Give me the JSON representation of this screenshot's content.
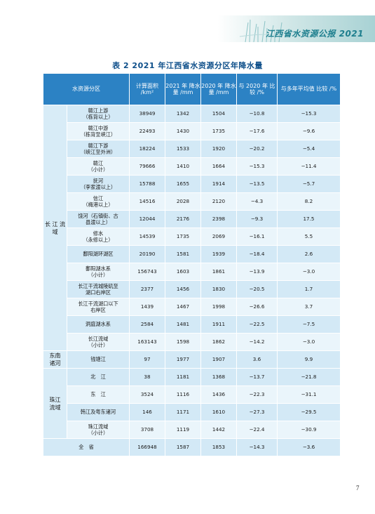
{
  "header": {
    "report_title": "江西省水资源公报 2021"
  },
  "caption": "表 2   2021 年江西省水资源分区年降水量",
  "table": {
    "columns": {
      "zone": "水资源分区",
      "area": "计算面积 /km²",
      "p2021": "2021 年 降水量 /mm",
      "p2020": "2020 年 降水量 /mm",
      "vs2020": "与 2020 年 比较 /%",
      "vsavg": "与多年平均值 比较 /%"
    },
    "groups": [
      {
        "name": "长 江 流 域",
        "rows": [
          {
            "name": "赣江上游\n（栋背以上）",
            "area": "38949",
            "p2021": "1342",
            "p2020": "1504",
            "vs2020": "−10.8",
            "vsavg": "−15.3"
          },
          {
            "name": "赣江中游\n（栋背至峡江）",
            "area": "22493",
            "p2021": "1430",
            "p2020": "1735",
            "vs2020": "−17.6",
            "vsavg": "−9.6"
          },
          {
            "name": "赣江下游\n（峡江至外洲）",
            "area": "18224",
            "p2021": "1533",
            "p2020": "1920",
            "vs2020": "−20.2",
            "vsavg": "−5.4"
          },
          {
            "name": "赣江\n（小计）",
            "area": "79666",
            "p2021": "1410",
            "p2020": "1664",
            "vs2020": "−15.3",
            "vsavg": "−11.4"
          },
          {
            "name": "抚河\n（李家渡以上）",
            "area": "15788",
            "p2021": "1655",
            "p2020": "1914",
            "vs2020": "−13.5",
            "vsavg": "−5.7"
          },
          {
            "name": "信江\n（梅港以上）",
            "area": "14516",
            "p2021": "2028",
            "p2020": "2120",
            "vs2020": "−4.3",
            "vsavg": "8.2"
          },
          {
            "name": "饶河（石镇街、古\n县渡以上）",
            "area": "12044",
            "p2021": "2176",
            "p2020": "2398",
            "vs2020": "−9.3",
            "vsavg": "17.5"
          },
          {
            "name": "修水\n（永修以上）",
            "area": "14539",
            "p2021": "1735",
            "p2020": "2069",
            "vs2020": "−16.1",
            "vsavg": "5.5"
          },
          {
            "name": "鄱阳湖环湖区",
            "area": "20190",
            "p2021": "1581",
            "p2020": "1939",
            "vs2020": "−18.4",
            "vsavg": "2.6"
          },
          {
            "name": "鄱阳湖水系\n（小计）",
            "area": "156743",
            "p2021": "1603",
            "p2020": "1861",
            "vs2020": "−13.9",
            "vsavg": "−3.0"
          },
          {
            "name": "长江干流城陵矶至\n湖口右岸区",
            "area": "2377",
            "p2021": "1456",
            "p2020": "1830",
            "vs2020": "−20.5",
            "vsavg": "1.7"
          },
          {
            "name": "长江干流湖口以下\n右岸区",
            "area": "1439",
            "p2021": "1467",
            "p2020": "1998",
            "vs2020": "−26.6",
            "vsavg": "3.7"
          },
          {
            "name": "洞庭湖水系",
            "area": "2584",
            "p2021": "1481",
            "p2020": "1911",
            "vs2020": "−22.5",
            "vsavg": "−7.5"
          },
          {
            "name": "长江流域\n（小计）",
            "area": "163143",
            "p2021": "1598",
            "p2020": "1862",
            "vs2020": "−14.2",
            "vsavg": "−3.0"
          }
        ]
      },
      {
        "name": "东南\n诸河",
        "rows": [
          {
            "name": "钱塘江",
            "area": "97",
            "p2021": "1977",
            "p2020": "1907",
            "vs2020": "3.6",
            "vsavg": "9.9"
          }
        ]
      },
      {
        "name": "珠江\n流域",
        "rows": [
          {
            "name": "北　江",
            "area": "38",
            "p2021": "1181",
            "p2020": "1368",
            "vs2020": "−13.7",
            "vsavg": "−21.8"
          },
          {
            "name": "东　江",
            "area": "3524",
            "p2021": "1116",
            "p2020": "1436",
            "vs2020": "−22.3",
            "vsavg": "−31.1"
          },
          {
            "name": "韩江及粤东诸河",
            "area": "146",
            "p2021": "1171",
            "p2020": "1610",
            "vs2020": "−27.3",
            "vsavg": "−29.5"
          },
          {
            "name": "珠江流域\n（小计）",
            "area": "3708",
            "p2021": "1119",
            "p2020": "1442",
            "vs2020": "−22.4",
            "vsavg": "−30.9"
          }
        ]
      }
    ],
    "total": {
      "name": "全　省",
      "area": "166948",
      "p2021": "1587",
      "p2020": "1853",
      "vs2020": "−14.3",
      "vsavg": "−3.6"
    }
  },
  "page_number": "7"
}
